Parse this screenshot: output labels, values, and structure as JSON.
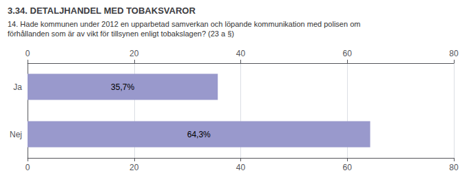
{
  "chart_data": {
    "type": "bar",
    "orientation": "horizontal",
    "title": "3.34. DETALJHANDEL MED TOBAKSVAROR",
    "subtitle": "14. Hade kommunen under 2012 en upparbetad samverkan och löpande kommunikation med polisen om\nförhållanden som är av vikt för tillsynen enligt tobakslagen? (23 a §)",
    "categories": [
      "Ja",
      "Nej"
    ],
    "values": [
      35.7,
      64.3
    ],
    "value_labels": [
      "35,7%",
      "64,3%"
    ],
    "color": "#9999cc",
    "xlim": [
      0,
      80
    ],
    "xticks": [
      0,
      20,
      40,
      60,
      80
    ],
    "grid": true,
    "data_labels": true
  }
}
